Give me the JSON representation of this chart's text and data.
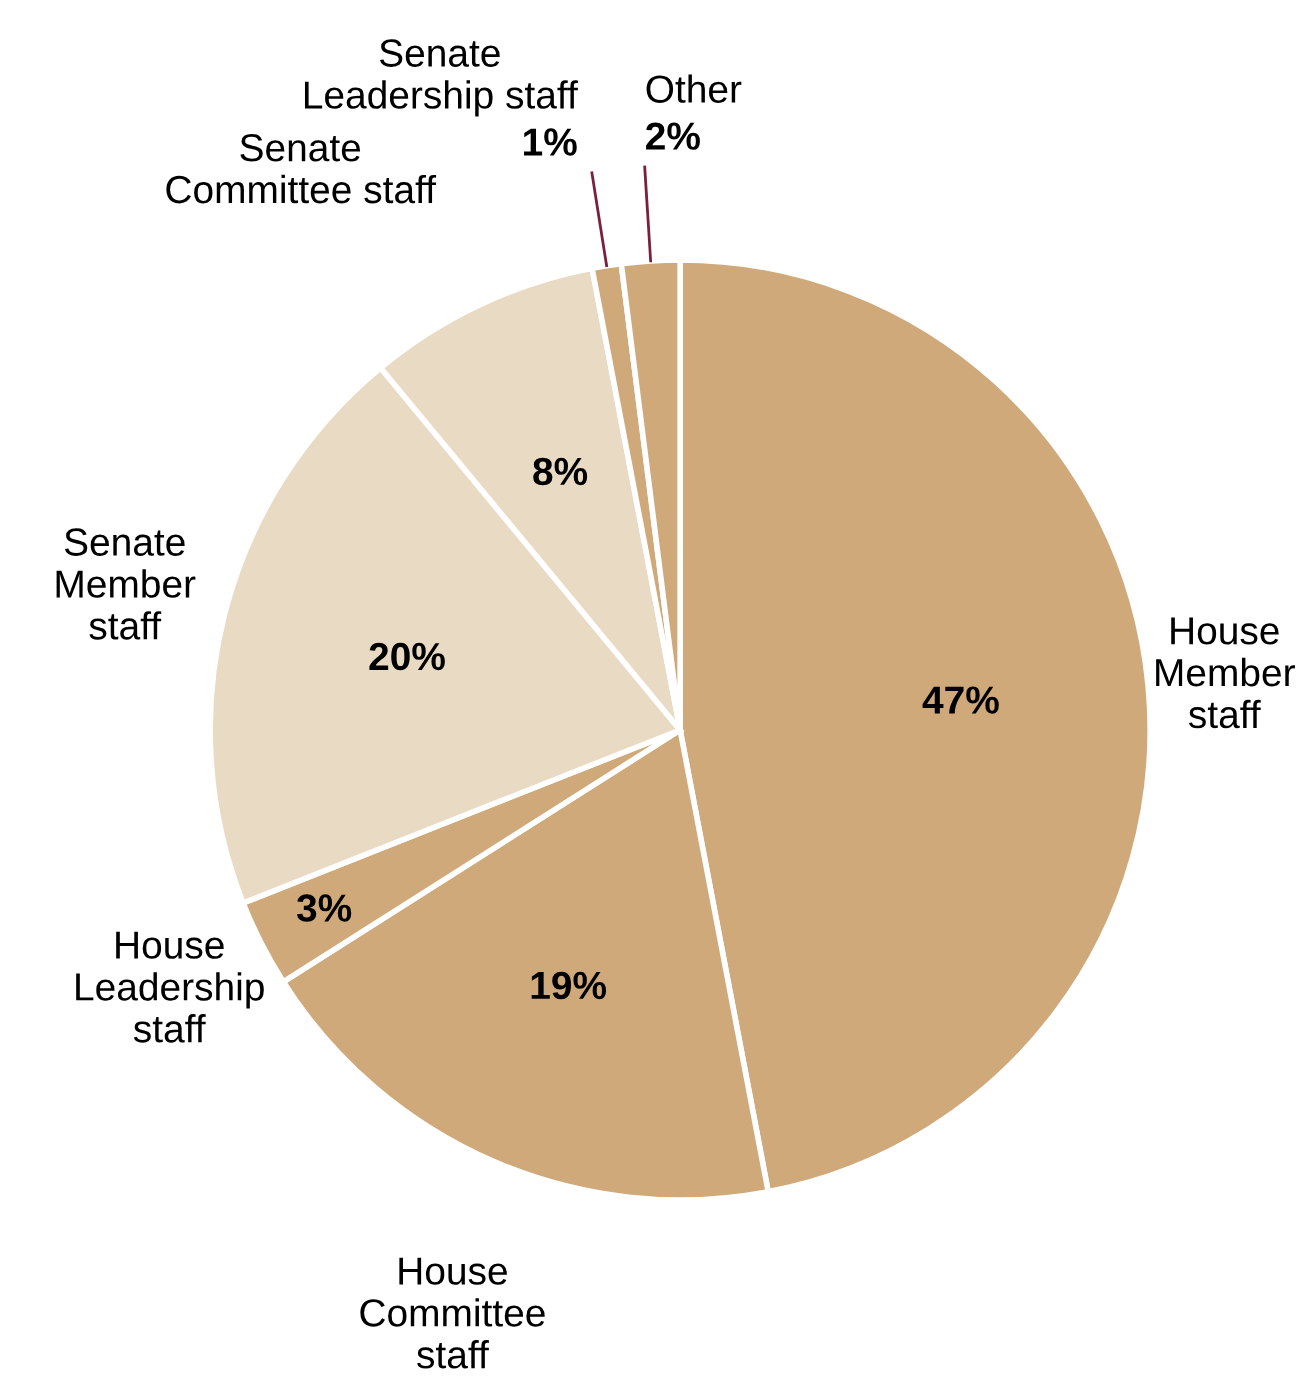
{
  "chart_data": {
    "type": "pie",
    "categories": [
      "House\nMember\nstaff",
      "House\nCommittee\nstaff",
      "House\nLeadership\nstaff",
      "Senate\nMember\nstaff",
      "Senate\nCommittee staff",
      "Senate\nLeadership staff",
      "Other"
    ],
    "values": [
      47,
      19,
      3,
      20,
      8,
      1,
      2
    ],
    "colors": [
      "#cfa97a",
      "#cfa97a",
      "#cfa97a",
      "#e9dac4",
      "#e9dac4",
      "#cfa97a",
      "#cfa97a"
    ],
    "data_labels": true,
    "value_labels": [
      "47%",
      "19%",
      "3%",
      "20%",
      "8%",
      "1%",
      "2%"
    ]
  }
}
